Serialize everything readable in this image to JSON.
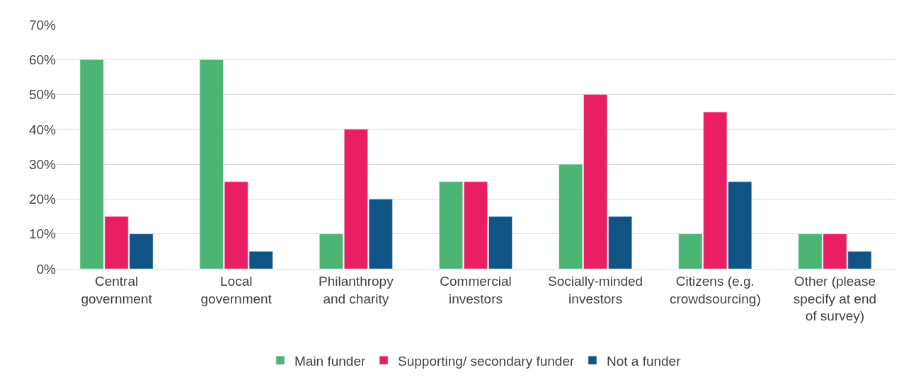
{
  "chart_data": {
    "type": "bar",
    "categories": [
      "Central government",
      "Local government",
      "Philanthropy and charity",
      "Commercial investors",
      "Socially-minded investors",
      "Citizens (e.g. crowdsourcing)",
      "Other (please specify at end of survey)"
    ],
    "series": [
      {
        "name": "Main funder",
        "color": "#4cb573",
        "values": [
          60,
          60,
          10,
          25,
          30,
          10,
          10
        ]
      },
      {
        "name": "Supporting/ secondary funder",
        "color": "#e91e63",
        "values": [
          15,
          25,
          40,
          25,
          50,
          45,
          10
        ]
      },
      {
        "name": "Not a funder",
        "color": "#0f5485",
        "values": [
          10,
          5,
          20,
          15,
          15,
          25,
          5
        ]
      }
    ],
    "ylim": [
      0,
      70
    ],
    "yticks": [
      {
        "value": 0,
        "label": "0%"
      },
      {
        "value": 10,
        "label": "10%"
      },
      {
        "value": 20,
        "label": "20%"
      },
      {
        "value": 30,
        "label": "30%"
      },
      {
        "value": 40,
        "label": "40%"
      },
      {
        "value": 50,
        "label": "50%"
      },
      {
        "value": 60,
        "label": "60%"
      },
      {
        "value": 70,
        "label": "70%"
      }
    ],
    "grid": "y",
    "legend": "bottom"
  }
}
